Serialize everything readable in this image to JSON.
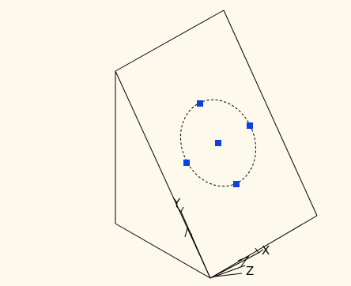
{
  "viewport": {
    "background_color": "#fdf9ec"
  },
  "model": {
    "edge_color": "#000000",
    "circle_style": "dashed"
  },
  "grips": {
    "color": "#0b3fe8",
    "count": 5,
    "selected_object": "circle"
  },
  "ucs_icon": {
    "labels": {
      "x": "X",
      "y": "Y",
      "z": "Z"
    }
  }
}
